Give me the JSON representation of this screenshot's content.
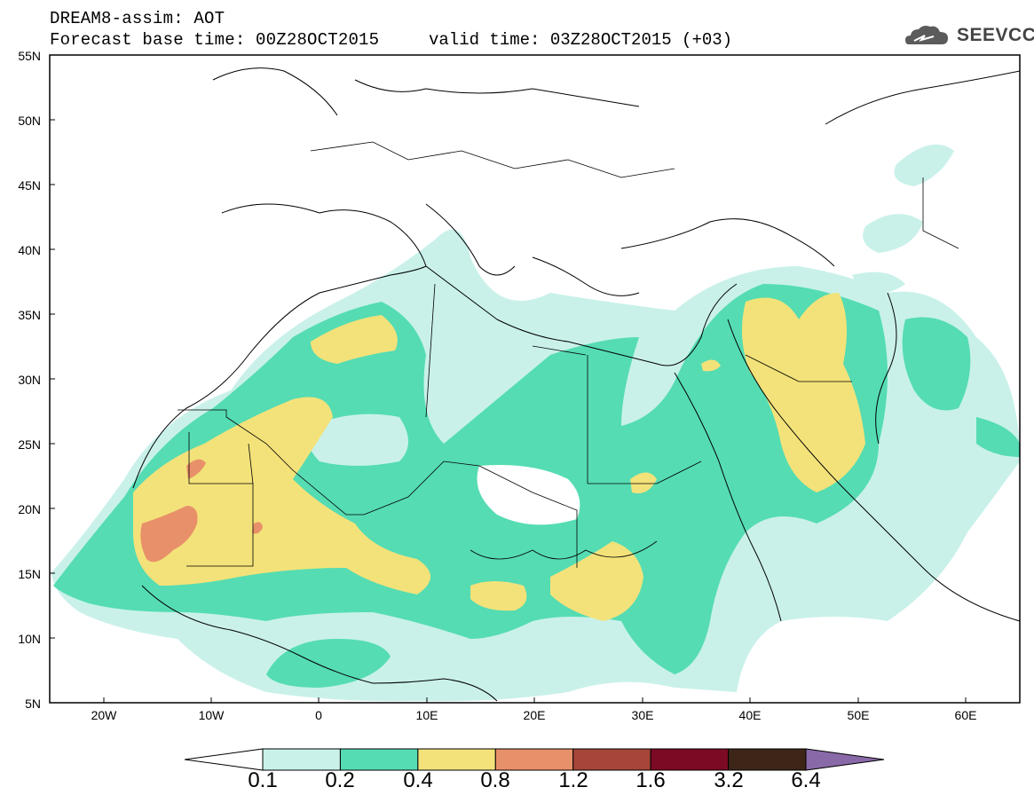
{
  "header": {
    "title": "DREAM8-assim: AOT",
    "base_time": "Forecast base time: 00Z28OCT2015",
    "valid_time": "valid time: 03Z28OCT2015 (+03)",
    "logo_text": "SEEVCCC"
  },
  "map": {
    "lat_labels": [
      "55N",
      "50N",
      "45N",
      "40N",
      "35N",
      "30N",
      "25N",
      "20N",
      "15N",
      "10N",
      "5N"
    ],
    "lon_labels": [
      "20W",
      "10W",
      "0",
      "10E",
      "20E",
      "30E",
      "40E",
      "50E",
      "60E"
    ],
    "extent": {
      "lon": [
        -25,
        65
      ],
      "lat": [
        5,
        55
      ]
    }
  },
  "colorbar": {
    "labels": [
      "0.1",
      "0.2",
      "0.4",
      "0.8",
      "1.2",
      "1.6",
      "3.2",
      "6.4"
    ],
    "colors": [
      "#ffffff",
      "#c9f1ea",
      "#55dcb3",
      "#f3e27a",
      "#e8906a",
      "#a54638",
      "#7c0a24",
      "#3d2618",
      "#8a69a8"
    ]
  }
}
